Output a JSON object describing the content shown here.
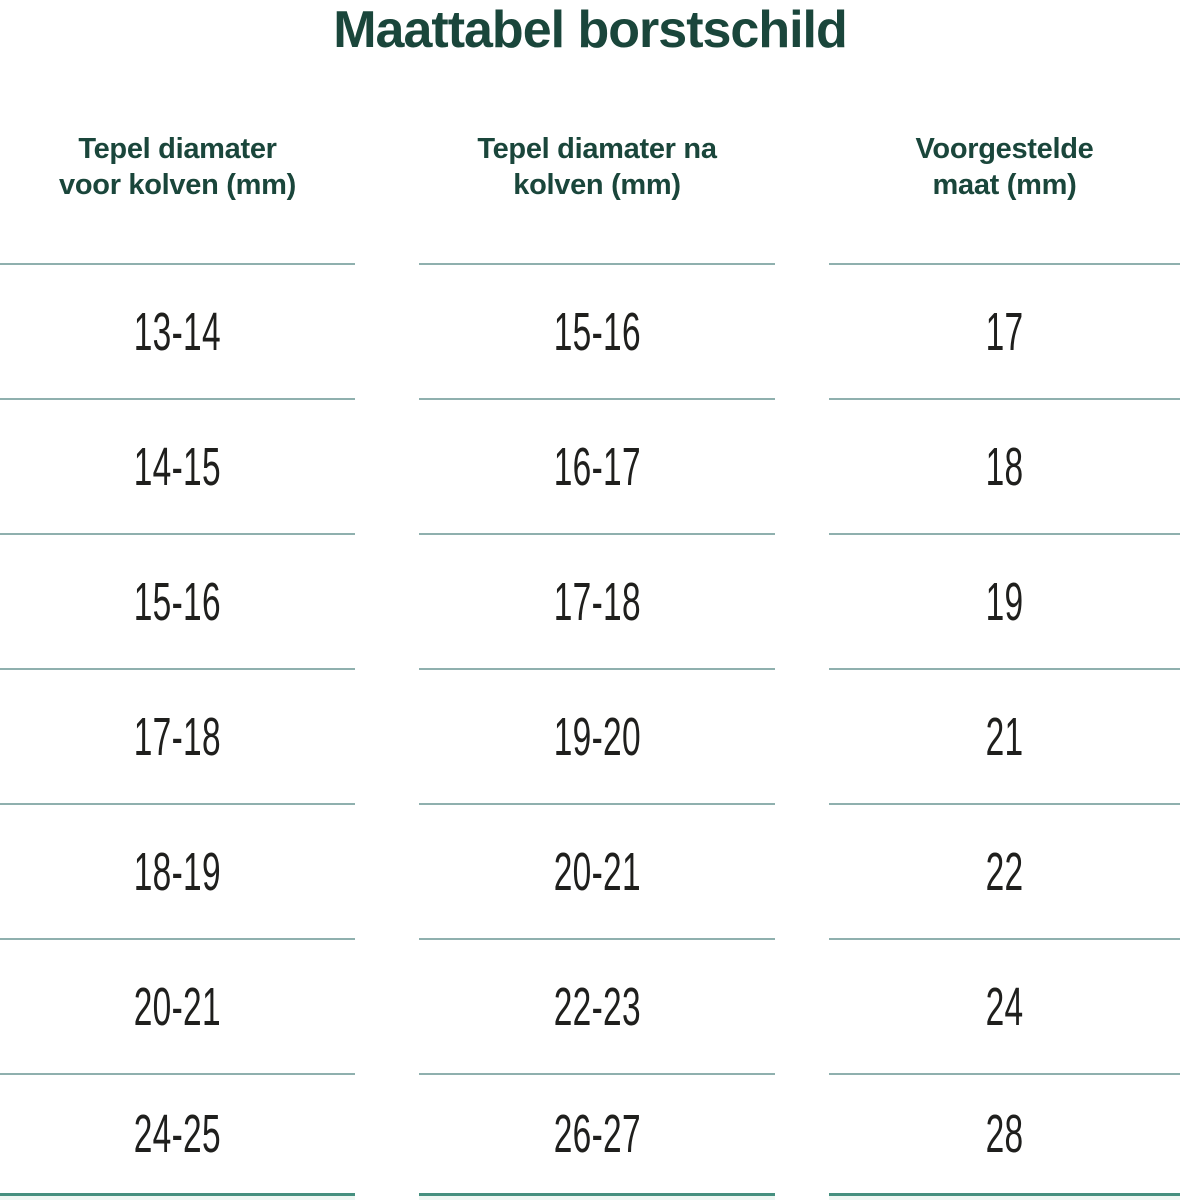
{
  "title": "Maattabel borstschild",
  "table": {
    "columns": [
      {
        "header_line1": "Tepel diamater",
        "header_line2": "voor kolven (mm)"
      },
      {
        "header_line1": "Tepel diamater na",
        "header_line2": "kolven (mm)"
      },
      {
        "header_line1": "Voorgestelde",
        "header_line2": "maat (mm)"
      }
    ],
    "rows": [
      [
        "13-14",
        "15-16",
        "17"
      ],
      [
        "14-15",
        "16-17",
        "18"
      ],
      [
        "15-16",
        "17-18",
        "19"
      ],
      [
        "17-18",
        "19-20",
        "21"
      ],
      [
        "18-19",
        "20-21",
        "22"
      ],
      [
        "20-21",
        "22-23",
        "24"
      ],
      [
        "24-25",
        "26-27",
        "28"
      ]
    ]
  },
  "chart_data": {
    "type": "table",
    "title": "Maattabel borstschild",
    "columns": [
      "Tepel diamater voor kolven (mm)",
      "Tepel diamater na kolven (mm)",
      "Voorgestelde maat (mm)"
    ],
    "rows": [
      [
        "13-14",
        "15-16",
        "17"
      ],
      [
        "14-15",
        "16-17",
        "18"
      ],
      [
        "15-16",
        "17-18",
        "19"
      ],
      [
        "17-18",
        "19-20",
        "21"
      ],
      [
        "18-19",
        "20-21",
        "22"
      ],
      [
        "20-21",
        "22-23",
        "24"
      ],
      [
        "24-25",
        "26-27",
        "28"
      ]
    ],
    "layout": {
      "grid": "horizontal-separators-only",
      "column_gaps": true
    }
  },
  "colors": {
    "heading_green": "#1a463b",
    "data_text": "#1f1f1d",
    "row_line": "#8fb0ae",
    "bottom_line": "#46907f"
  }
}
